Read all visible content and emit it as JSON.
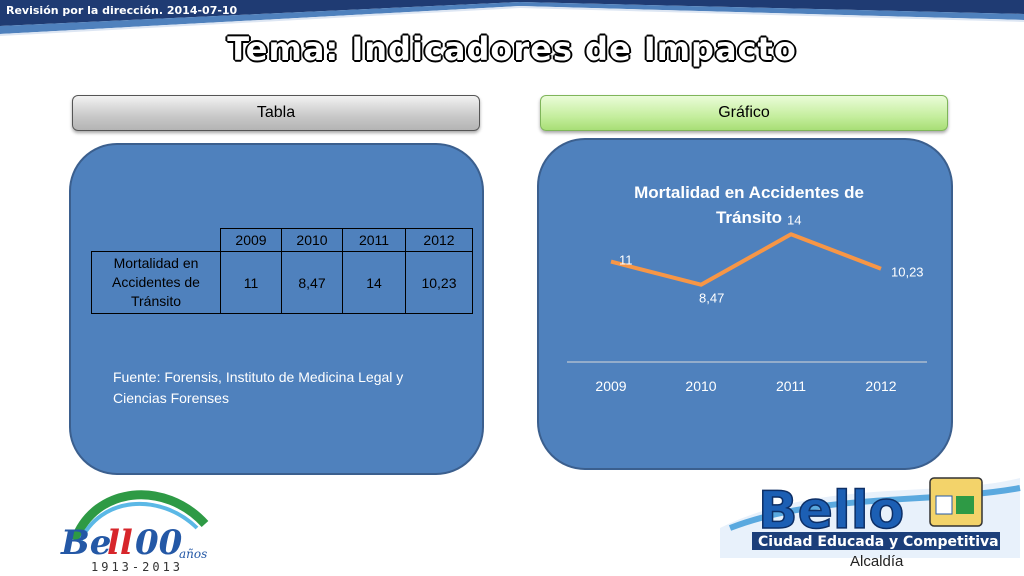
{
  "header": {
    "text": "Revisión por la dirección. 2014-07-10"
  },
  "slide_title": "Tema: Indicadores de Impacto",
  "tabs": {
    "tabla_label": "Tabla",
    "grafico_label": "Gráfico"
  },
  "table": {
    "years": [
      "2009",
      "2010",
      "2011",
      "2012"
    ],
    "row_label": "Mortalidad en Accidentes de Tránsito",
    "values": [
      "11",
      "8,47",
      "14",
      "10,23"
    ]
  },
  "source_text": "Fuente: Forensis, Instituto de Medicina Legal y Ciencias Forenses",
  "chart_data": {
    "type": "line",
    "title": "Mortalidad en Accidentes de Tránsito",
    "categories": [
      "2009",
      "2010",
      "2011",
      "2012"
    ],
    "series": [
      {
        "values": [
          11,
          8.47,
          14,
          10.23
        ],
        "labels": [
          "11",
          "8,47",
          "14",
          "10,23"
        ],
        "color": "#f79646"
      }
    ],
    "xlabel": "",
    "ylabel": "",
    "grid": false,
    "legend": "none"
  },
  "logos": {
    "left_text": "Bello",
    "left_years": "1913-2013",
    "left_anos": "años",
    "right_text": "Bello",
    "right_tagline": "Ciudad Educada y Competitiva",
    "right_sub": "Alcaldía"
  },
  "colors": {
    "frame": "#1f3b73",
    "panel": "#4f81bd",
    "line": "#f79646"
  }
}
